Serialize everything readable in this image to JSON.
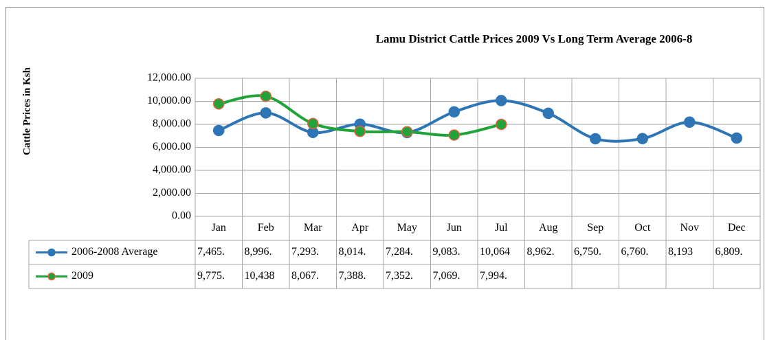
{
  "chart_data": {
    "type": "line",
    "title": "Lamu District Cattle Prices 2009 Vs Long Term Average 2006-8",
    "y_label": "Cattle Prices in Ksh",
    "categories": [
      "Jan",
      "Feb",
      "Mar",
      "Apr",
      "May",
      "Jun",
      "Jul",
      "Aug",
      "Sep",
      "Oct",
      "Nov",
      "Dec"
    ],
    "series": [
      {
        "name": "2006-2008 Average",
        "color": "#2e75b6",
        "marker_edge": "#2e75b6",
        "values": [
          7465,
          8996,
          7293,
          8014,
          7284,
          9083,
          10064,
          8962,
          6750,
          6760,
          8193,
          6809
        ],
        "value_labels": [
          "7,465.",
          "8,996.",
          "7,293.",
          "8,014.",
          "7,284.",
          "9,083.",
          "10,064",
          "8,962.",
          "6,750.",
          "6,760.",
          "8,193",
          "6,809."
        ]
      },
      {
        "name": "2009",
        "color": "#22a33a",
        "marker_edge": "#e0603a",
        "values": [
          9775,
          10438,
          8067,
          7388,
          7352,
          7069,
          7994,
          null,
          null,
          null,
          null,
          null
        ],
        "value_labels": [
          "9,775.",
          "10,438",
          "8,067.",
          "7,388.",
          "7,352.",
          "7,069.",
          "7,994.",
          null,
          null,
          null,
          null,
          null
        ]
      }
    ],
    "ylim": [
      0,
      12000
    ],
    "yticks": [
      {
        "value": 0,
        "label": "0.00"
      },
      {
        "value": 2000,
        "label": "2,000.00"
      },
      {
        "value": 4000,
        "label": "4,000.00"
      },
      {
        "value": 6000,
        "label": "6,000.00"
      },
      {
        "value": 8000,
        "label": "8,000.00"
      },
      {
        "value": 10000,
        "label": "10,000.00"
      },
      {
        "value": 12000,
        "label": "12,000.00"
      }
    ],
    "grid": true
  }
}
